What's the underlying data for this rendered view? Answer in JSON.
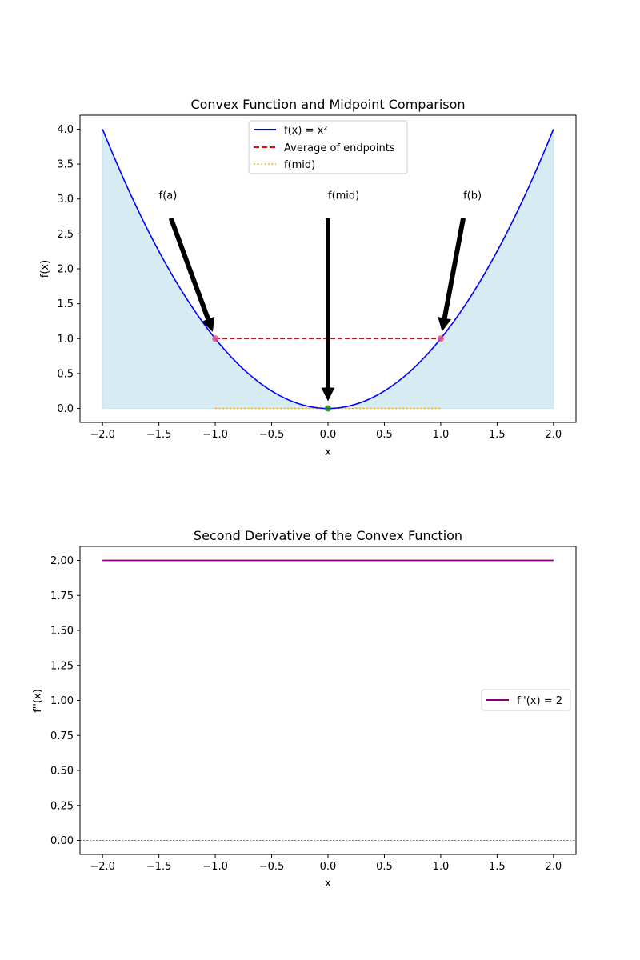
{
  "chart_data": [
    {
      "type": "line",
      "title": "Convex Function and Midpoint Comparison",
      "xlabel": "x",
      "ylabel": "f(x)",
      "xlim": [
        -2.2,
        2.2
      ],
      "ylim": [
        -0.2,
        4.2
      ],
      "xticks": [
        "−2.0",
        "−1.5",
        "−1.0",
        "−0.5",
        "0.0",
        "0.5",
        "1.0",
        "1.5",
        "2.0"
      ],
      "xtick_values": [
        -2.0,
        -1.5,
        -1.0,
        -0.5,
        0.0,
        0.5,
        1.0,
        1.5,
        2.0
      ],
      "yticks": [
        "0.0",
        "0.5",
        "1.0",
        "1.5",
        "2.0",
        "2.5",
        "3.0",
        "3.5",
        "4.0"
      ],
      "ytick_values": [
        0.0,
        0.5,
        1.0,
        1.5,
        2.0,
        2.5,
        3.0,
        3.5,
        4.0
      ],
      "grid": false,
      "legend_position": "top-center",
      "series": [
        {
          "name": "f(x) = x²",
          "style": "solid",
          "color": "#0000ff",
          "function": "x^2",
          "x_range": [
            -2.0,
            2.0
          ],
          "filled": true,
          "fill_color": "#add8e6"
        },
        {
          "name": "Average of endpoints",
          "style": "dashed",
          "color": "#ff0000",
          "x": [
            -1.0,
            1.0
          ],
          "y": [
            1.0,
            1.0
          ]
        },
        {
          "name": "f(mid)",
          "style": "dotted",
          "color": "#ffa500",
          "x": [
            -1.0,
            1.0
          ],
          "y": [
            0.0,
            0.0
          ]
        }
      ],
      "points": [
        {
          "x": -1.0,
          "y": 1.0,
          "color": "#e05088"
        },
        {
          "x": 1.0,
          "y": 1.0,
          "color": "#e05088"
        },
        {
          "x": 0.0,
          "y": 0.0,
          "color": "#1a8a1a"
        }
      ],
      "annotations": [
        {
          "text": "f(a)",
          "text_x": -1.5,
          "text_y": 3.0,
          "arrow_to_x": -1.0,
          "arrow_to_y": 1.0
        },
        {
          "text": "f(mid)",
          "text_x": 0.0,
          "text_y": 3.0,
          "arrow_to_x": 0.0,
          "arrow_to_y": 0.0
        },
        {
          "text": "f(b)",
          "text_x": 1.2,
          "text_y": 3.0,
          "arrow_to_x": 1.0,
          "arrow_to_y": 1.0
        }
      ]
    },
    {
      "type": "line",
      "title": "Second Derivative of the Convex Function",
      "xlabel": "x",
      "ylabel": "f''(x)",
      "xlim": [
        -2.2,
        2.2
      ],
      "ylim": [
        -0.1,
        2.1
      ],
      "xticks": [
        "−2.0",
        "−1.5",
        "−1.0",
        "−0.5",
        "0.0",
        "0.5",
        "1.0",
        "1.5",
        "2.0"
      ],
      "xtick_values": [
        -2.0,
        -1.5,
        -1.0,
        -0.5,
        0.0,
        0.5,
        1.0,
        1.5,
        2.0
      ],
      "yticks": [
        "0.00",
        "0.25",
        "0.50",
        "0.75",
        "1.00",
        "1.25",
        "1.50",
        "1.75",
        "2.00"
      ],
      "ytick_values": [
        0.0,
        0.25,
        0.5,
        0.75,
        1.0,
        1.25,
        1.5,
        1.75,
        2.0
      ],
      "grid": false,
      "legend_position": "center-right",
      "series": [
        {
          "name": "f''(x) = 2",
          "style": "solid",
          "color": "#800080",
          "x": [
            -2.0,
            2.0
          ],
          "y": [
            2.0,
            2.0
          ]
        }
      ],
      "reference_line": {
        "y": 0.0,
        "style": "dashed",
        "color": "#000000"
      }
    }
  ]
}
